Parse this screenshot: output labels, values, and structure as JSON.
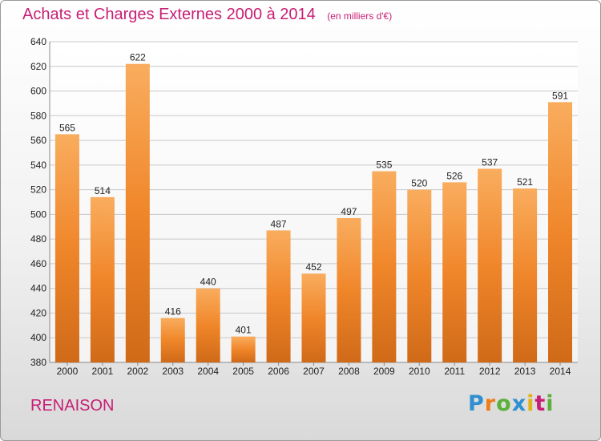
{
  "chart_data": {
    "type": "bar",
    "title": "Achats et Charges Externes 2000 à 2014",
    "subtitle": "(en milliers d'€)",
    "categories": [
      "2000",
      "2001",
      "2002",
      "2003",
      "2004",
      "2005",
      "2006",
      "2007",
      "2008",
      "2009",
      "2010",
      "2011",
      "2012",
      "2013",
      "2014"
    ],
    "values": [
      565,
      514,
      622,
      416,
      440,
      401,
      487,
      452,
      497,
      535,
      520,
      526,
      537,
      521,
      591
    ],
    "ylim": [
      380,
      640
    ],
    "yticks": [
      380,
      400,
      420,
      440,
      460,
      480,
      500,
      520,
      540,
      560,
      580,
      600,
      620,
      640
    ],
    "grid": true,
    "legend": "none",
    "bar_color": "#f0862a",
    "bar_color_light": "#f9ad5e",
    "bar_color_dark": "#d06a18"
  },
  "place_name": "RENAISON",
  "logo": {
    "text": "Proxiti",
    "letters": [
      "P",
      "r",
      "o",
      "x",
      "i",
      "t",
      "i"
    ]
  },
  "colors": {
    "title": "#c81e74",
    "grid": "#c8c8c8",
    "axis": "#8a8a8a"
  }
}
